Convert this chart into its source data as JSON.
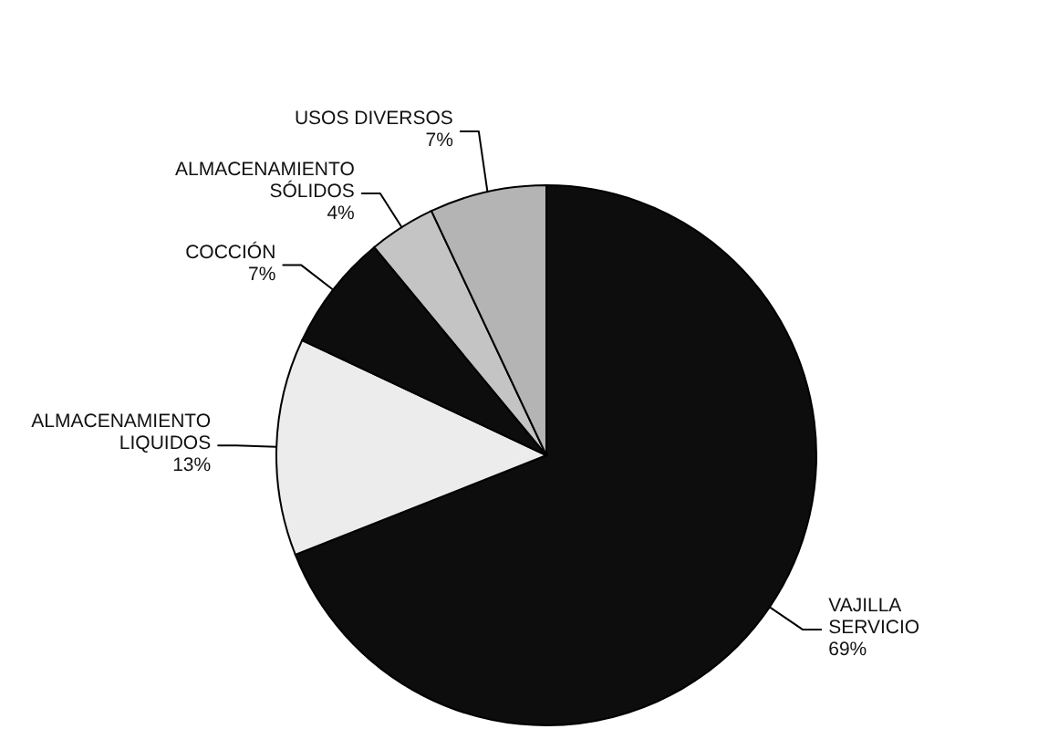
{
  "chart_data": {
    "type": "pie",
    "categories": [
      "VAJILLA SERVICIO",
      "ALMACENAMIENTO LIQUIDOS",
      "COCCIÓN",
      "ALMACENAMIENTO SÓLIDOS",
      "USOS DIVERSOS"
    ],
    "values": [
      69,
      13,
      7,
      4,
      7
    ],
    "colors": [
      "#0d0d0d",
      "#ececec",
      "#0d0d0d",
      "#c4c4c4",
      "#b4b4b4"
    ],
    "value_labels": [
      "69%",
      "13%",
      "7%",
      "4%",
      "7%"
    ]
  }
}
